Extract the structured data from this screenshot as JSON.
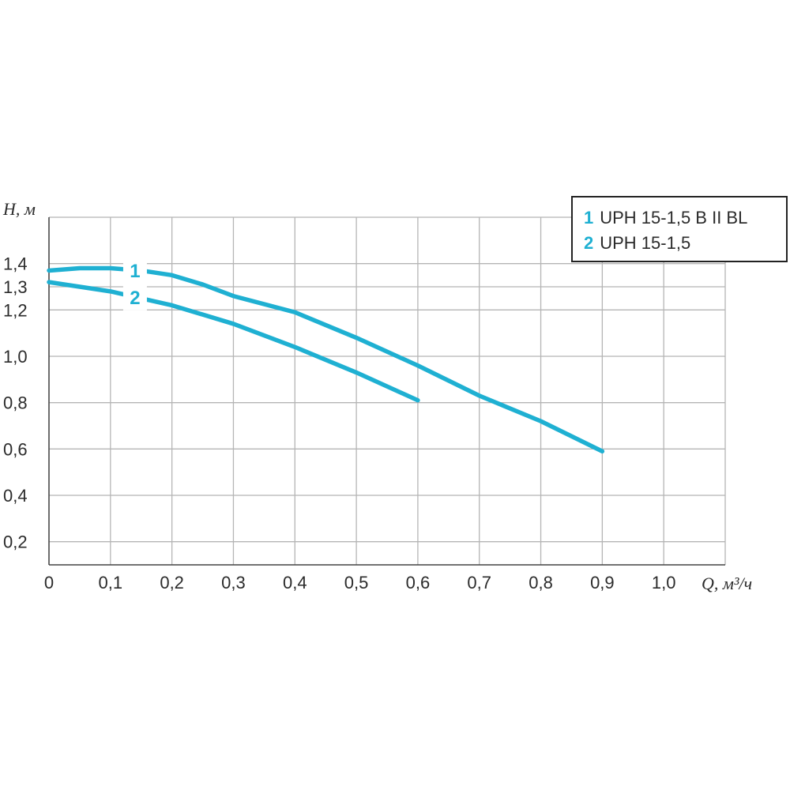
{
  "chart_data": {
    "type": "line",
    "xlabel": "Q, м³/ч",
    "ylabel": "H, м",
    "xlim": [
      0,
      1.1
    ],
    "ylim": [
      0.1,
      1.6
    ],
    "grid": true,
    "legend_position": "top-right",
    "x_ticks": [
      "0",
      "0,1",
      "0,2",
      "0,3",
      "0,4",
      "0,5",
      "0,6",
      "0,7",
      "0,8",
      "0,9",
      "1,0"
    ],
    "x_tick_values": [
      0,
      0.1,
      0.2,
      0.3,
      0.4,
      0.5,
      0.6,
      0.7,
      0.8,
      0.9,
      1.0
    ],
    "y_ticks": [
      "0,2",
      "0,4",
      "0,6",
      "0,8",
      "1,0",
      "1,2",
      "1,3",
      "1,4"
    ],
    "y_tick_values": [
      0.2,
      0.4,
      0.6,
      0.8,
      1.0,
      1.2,
      1.3,
      1.4
    ],
    "series": [
      {
        "name": "UPH 15-1,5 B II BL",
        "label": "1",
        "color": "#1fb0d2",
        "x": [
          0,
          0.05,
          0.1,
          0.15,
          0.2,
          0.25,
          0.3,
          0.4,
          0.5,
          0.6,
          0.7,
          0.8,
          0.9
        ],
        "y": [
          1.37,
          1.38,
          1.38,
          1.37,
          1.35,
          1.31,
          1.26,
          1.19,
          1.08,
          0.96,
          0.83,
          0.72,
          0.59
        ]
      },
      {
        "name": "UPH 15-1,5",
        "label": "2",
        "color": "#1fb0d2",
        "x": [
          0,
          0.1,
          0.2,
          0.3,
          0.4,
          0.5,
          0.6
        ],
        "y": [
          1.32,
          1.28,
          1.22,
          1.14,
          1.04,
          0.93,
          0.81
        ]
      }
    ]
  }
}
